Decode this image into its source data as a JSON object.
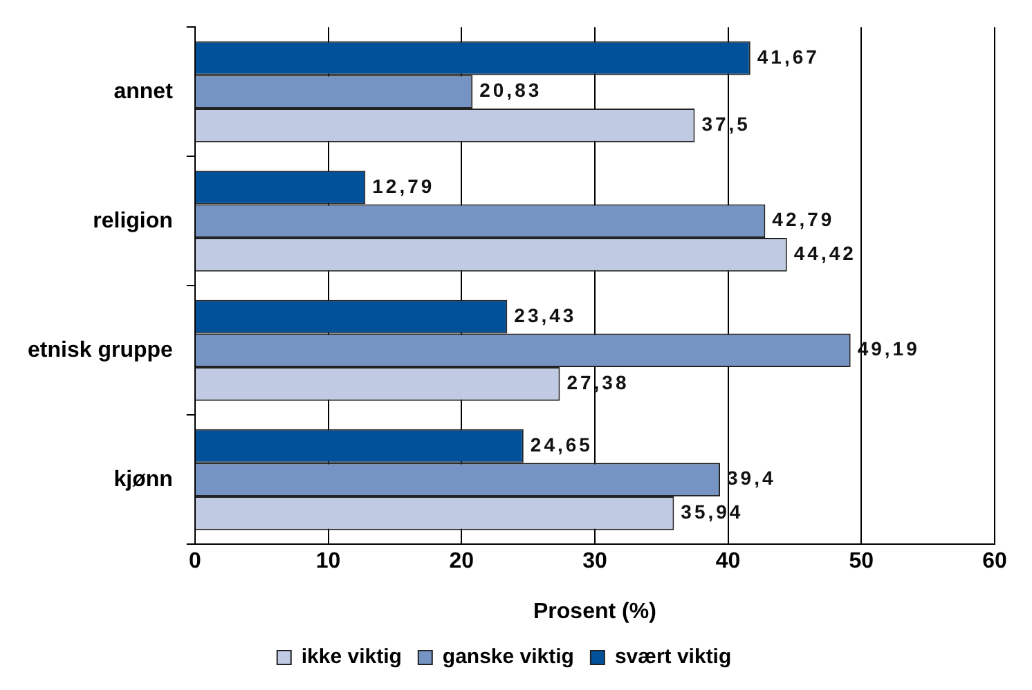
{
  "chart_data": {
    "type": "bar",
    "orientation": "horizontal",
    "xlabel": "Prosent (%)",
    "categories": [
      "annet",
      "religion",
      "etnisk gruppe",
      "kjønn"
    ],
    "series": [
      {
        "name": "ikke viktig",
        "color": "#c0cae3",
        "values": [
          37.5,
          44.42,
          27.38,
          35.94
        ],
        "value_labels": [
          "37,5",
          "44,42",
          "27,38",
          "35,94"
        ]
      },
      {
        "name": "ganske viktig",
        "color": "#7593c3",
        "values": [
          20.83,
          42.79,
          49.19,
          39.4
        ],
        "value_labels": [
          "20,83",
          "42,79",
          "49,19",
          "39,4"
        ]
      },
      {
        "name": "svært viktig",
        "color": "#00519a",
        "values": [
          41.67,
          12.79,
          23.43,
          24.65
        ],
        "value_labels": [
          "41,67",
          "12,79",
          "23,43",
          "24,65"
        ]
      }
    ],
    "xlim": [
      0,
      60
    ],
    "xticks": [
      0,
      10,
      20,
      30,
      40,
      50,
      60
    ],
    "grid": "x",
    "legend": "bottom"
  }
}
